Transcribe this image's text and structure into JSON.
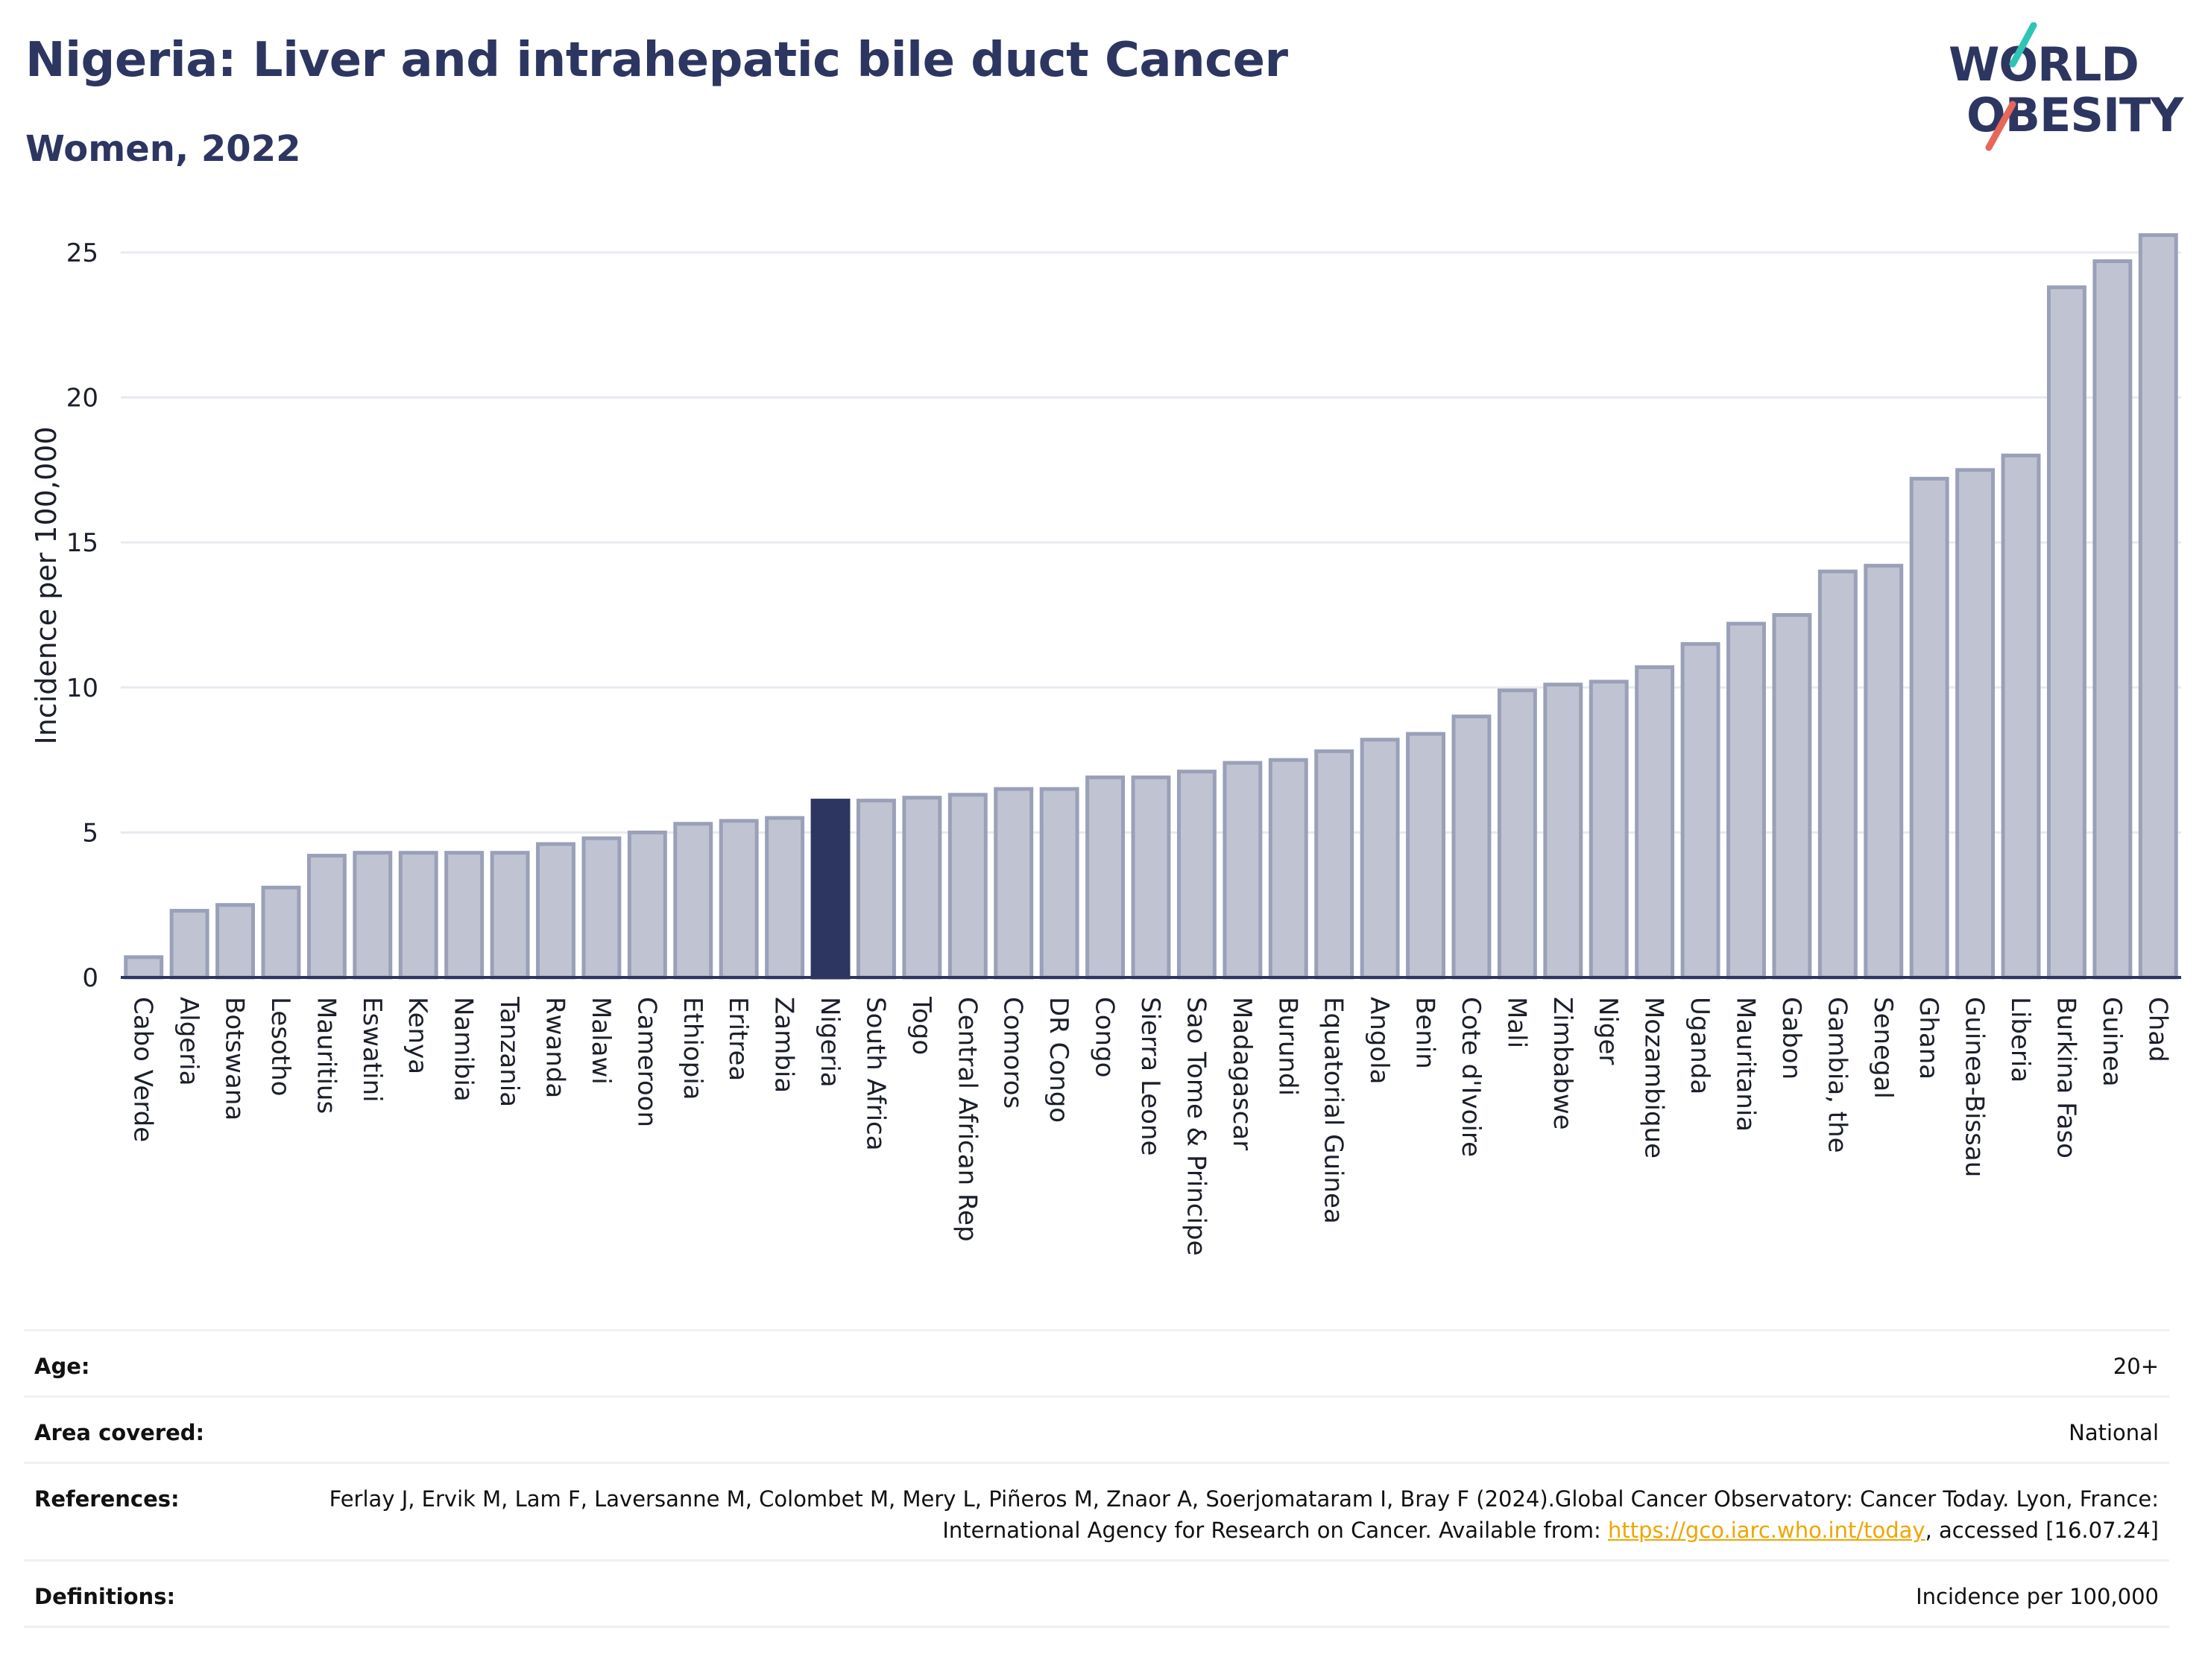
{
  "header": {
    "title": "Nigeria: Liver and intrahepatic bile duct Cancer",
    "subtitle": "Women, 2022"
  },
  "logo": {
    "line1": "WORLD",
    "line2": "OBESITY",
    "accent_colors": [
      "#2ec4b6",
      "#e8665a"
    ]
  },
  "chart_data": {
    "type": "bar",
    "ylabel": "Incidence per 100,000",
    "ylim": [
      0,
      26
    ],
    "yticks": [
      0,
      5,
      10,
      15,
      20,
      25
    ],
    "grid": true,
    "highlight": "Nigeria",
    "colors": {
      "bar": "#c0c4d2",
      "bar_stroke": "#9aa0b8",
      "highlight": "#2d3661",
      "grid": "#e8eaf0"
    },
    "categories": [
      "Cabo Verde",
      "Algeria",
      "Botswana",
      "Lesotho",
      "Mauritius",
      "Eswatini",
      "Kenya",
      "Namibia",
      "Tanzania",
      "Rwanda",
      "Malawi",
      "Cameroon",
      "Ethiopia",
      "Eritrea",
      "Zambia",
      "Nigeria",
      "South Africa",
      "Togo",
      "Central African Rep",
      "Comoros",
      "DR Congo",
      "Congo",
      "Sierra Leone",
      "Sao Tome & Principe",
      "Madagascar",
      "Burundi",
      "Equatorial Guinea",
      "Angola",
      "Benin",
      "Cote d'Ivoire",
      "Mali",
      "Zimbabwe",
      "Niger",
      "Mozambique",
      "Uganda",
      "Mauritania",
      "Gabon",
      "Gambia, the",
      "Senegal",
      "Ghana",
      "Guinea-Bissau",
      "Liberia",
      "Burkina Faso",
      "Guinea",
      "Chad"
    ],
    "values": [
      0.7,
      2.3,
      2.5,
      3.1,
      4.2,
      4.3,
      4.3,
      4.3,
      4.3,
      4.6,
      4.8,
      5.0,
      5.3,
      5.4,
      5.5,
      6.1,
      6.1,
      6.2,
      6.3,
      6.5,
      6.5,
      6.9,
      6.9,
      7.1,
      7.4,
      7.5,
      7.8,
      8.2,
      8.4,
      9.0,
      9.9,
      10.1,
      10.2,
      10.7,
      11.5,
      12.2,
      12.5,
      14.0,
      14.2,
      17.2,
      17.5,
      18.0,
      23.8,
      24.7,
      25.6
    ]
  },
  "info": {
    "age_label": "Age:",
    "age_value": "20+",
    "area_label": "Area covered:",
    "area_value": "National",
    "references_label": "References:",
    "references_text_1": "Ferlay J, Ervik M, Lam F, Laversanne M, Colombet M, Mery L, Piñeros M, Znaor A, Soerjomataram I, Bray F (2024).Global Cancer Observatory: Cancer Today. Lyon, France: International Agency for Research on Cancer. Available from: ",
    "references_link": "https://gco.iarc.who.int/today",
    "references_text_2": ", accessed [16.07.24]",
    "definitions_label": "Definitions:",
    "definitions_value": "Incidence per 100,000"
  }
}
